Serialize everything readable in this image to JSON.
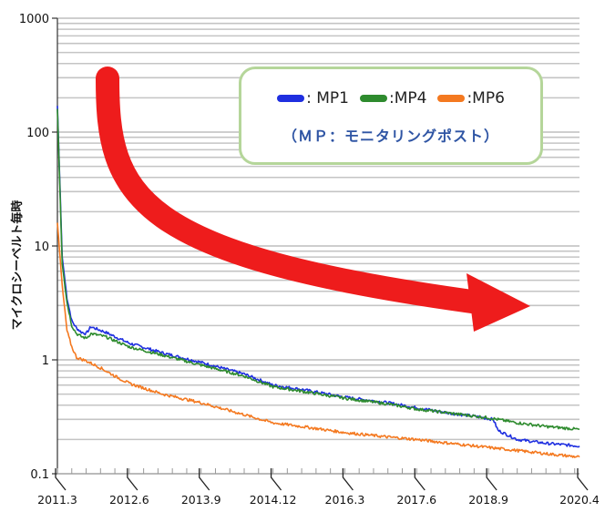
{
  "chart_data": {
    "type": "line",
    "y_scale": "log",
    "ylim": [
      0.1,
      1000
    ],
    "xlim": [
      "2011.3",
      "2020.4"
    ],
    "ylabel": "マイクロシーベルト毎時",
    "y_ticks": [
      {
        "value": 0.1,
        "label": "0.1"
      },
      {
        "value": 1,
        "label": "1"
      },
      {
        "value": 10,
        "label": "10"
      },
      {
        "value": 100,
        "label": "100"
      },
      {
        "value": 1000,
        "label": "1000"
      }
    ],
    "x_ticks": [
      "2011.3",
      "2012.6",
      "2013.9",
      "2014.12",
      "2016.3",
      "2017.6",
      "2018.9",
      "2020.4"
    ],
    "grid": true,
    "legend": {
      "placement": "top-right",
      "note": "（ＭＰ：モニタリングポスト）"
    },
    "series": [
      {
        "name": ": MP1",
        "color": "#1f2fe0",
        "points": [
          [
            "2011.3",
            170
          ],
          [
            "2011.4",
            8
          ],
          [
            "2011.5",
            3.5
          ],
          [
            "2011.6",
            2.2
          ],
          [
            "2011.7",
            1.9
          ],
          [
            "2011.8",
            1.75
          ],
          [
            "2011.9",
            1.7
          ],
          [
            "2011.10",
            1.95
          ],
          [
            "2012.1",
            1.75
          ],
          [
            "2012.6",
            1.4
          ],
          [
            "2013.1",
            1.15
          ],
          [
            "2013.9",
            0.95
          ],
          [
            "2014.6",
            0.75
          ],
          [
            "2014.12",
            0.6
          ],
          [
            "2015.6",
            0.55
          ],
          [
            "2016.3",
            0.47
          ],
          [
            "2016.12",
            0.42
          ],
          [
            "2017.6",
            0.38
          ],
          [
            "2018.1",
            0.34
          ],
          [
            "2018.6",
            0.32
          ],
          [
            "2018.10",
            0.3
          ],
          [
            "2018.11",
            0.24
          ],
          [
            "2019.3",
            0.2
          ],
          [
            "2019.9",
            0.185
          ],
          [
            "2020.4",
            0.175
          ]
        ]
      },
      {
        "name": ":MP4",
        "color": "#2e8b2e",
        "points": [
          [
            "2011.3",
            160
          ],
          [
            "2011.4",
            7
          ],
          [
            "2011.5",
            3.2
          ],
          [
            "2011.6",
            2.0
          ],
          [
            "2011.7",
            1.7
          ],
          [
            "2011.8",
            1.6
          ],
          [
            "2011.9",
            1.55
          ],
          [
            "2011.10",
            1.7
          ],
          [
            "2012.1",
            1.6
          ],
          [
            "2012.6",
            1.3
          ],
          [
            "2013.1",
            1.1
          ],
          [
            "2013.9",
            0.9
          ],
          [
            "2014.6",
            0.72
          ],
          [
            "2014.12",
            0.58
          ],
          [
            "2015.6",
            0.53
          ],
          [
            "2016.3",
            0.46
          ],
          [
            "2016.12",
            0.41
          ],
          [
            "2017.6",
            0.37
          ],
          [
            "2018.1",
            0.34
          ],
          [
            "2018.9",
            0.31
          ],
          [
            "2019.3",
            0.28
          ],
          [
            "2019.9",
            0.26
          ],
          [
            "2020.4",
            0.245
          ]
        ]
      },
      {
        "name": ":MP6",
        "color": "#f47920",
        "points": [
          [
            "2011.3",
            16
          ],
          [
            "2011.4",
            4.5
          ],
          [
            "2011.5",
            1.8
          ],
          [
            "2011.6",
            1.3
          ],
          [
            "2011.7",
            1.05
          ],
          [
            "2011.9",
            0.98
          ],
          [
            "2011.12",
            0.85
          ],
          [
            "2012.3",
            0.72
          ],
          [
            "2012.6",
            0.62
          ],
          [
            "2013.1",
            0.5
          ],
          [
            "2013.9",
            0.42
          ],
          [
            "2014.6",
            0.33
          ],
          [
            "2014.12",
            0.28
          ],
          [
            "2015.6",
            0.26
          ],
          [
            "2016.3",
            0.23
          ],
          [
            "2016.12",
            0.21
          ],
          [
            "2017.6",
            0.2
          ],
          [
            "2018.1",
            0.185
          ],
          [
            "2018.9",
            0.17
          ],
          [
            "2019.3",
            0.16
          ],
          [
            "2019.9",
            0.15
          ],
          [
            "2020.4",
            0.14
          ]
        ]
      }
    ],
    "annotations": [
      {
        "type": "arrow",
        "color": "#ee1c1c",
        "meaning": "decreasing trend"
      }
    ]
  }
}
